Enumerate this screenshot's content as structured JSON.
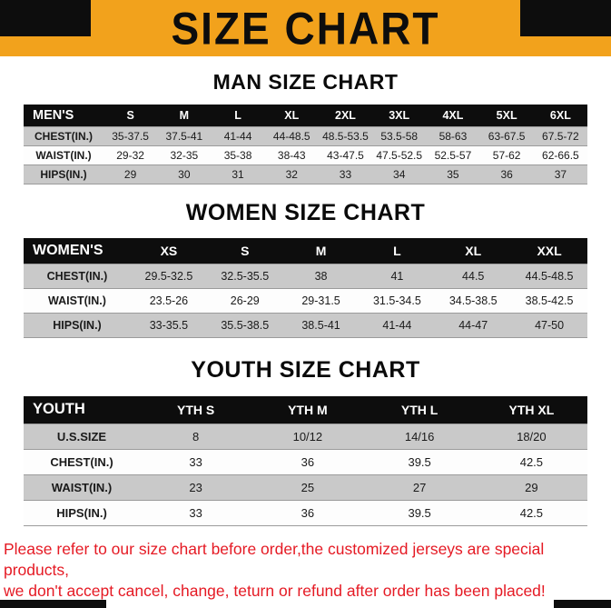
{
  "banner": {
    "title": "SIZE CHART"
  },
  "colors": {
    "accent_orange": "#f2a21c",
    "header_black": "#0d0d0d",
    "row_gray": "#c9c9c9",
    "footer_red": "#e51a24"
  },
  "sections": {
    "men": {
      "title": "MAN SIZE CHART",
      "table": {
        "header": [
          "MEN'S",
          "S",
          "M",
          "L",
          "XL",
          "2XL",
          "3XL",
          "4XL",
          "5XL",
          "6XL"
        ],
        "rows": [
          [
            "CHEST(IN.)",
            "35-37.5",
            "37.5-41",
            "41-44",
            "44-48.5",
            "48.5-53.5",
            "53.5-58",
            "58-63",
            "63-67.5",
            "67.5-72"
          ],
          [
            "WAIST(IN.)",
            "29-32",
            "32-35",
            "35-38",
            "38-43",
            "43-47.5",
            "47.5-52.5",
            "52.5-57",
            "57-62",
            "62-66.5"
          ],
          [
            "HIPS(IN.)",
            "29",
            "30",
            "31",
            "32",
            "33",
            "34",
            "35",
            "36",
            "37"
          ]
        ]
      }
    },
    "women": {
      "title": "WOMEN SIZE CHART",
      "table": {
        "header": [
          "WOMEN'S",
          "XS",
          "S",
          "M",
          "L",
          "XL",
          "XXL"
        ],
        "rows": [
          [
            "CHEST(IN.)",
            "29.5-32.5",
            "32.5-35.5",
            "38",
            "41",
            "44.5",
            "44.5-48.5"
          ],
          [
            "WAIST(IN.)",
            "23.5-26",
            "26-29",
            "29-31.5",
            "31.5-34.5",
            "34.5-38.5",
            "38.5-42.5"
          ],
          [
            "HIPS(IN.)",
            "33-35.5",
            "35.5-38.5",
            "38.5-41",
            "41-44",
            "44-47",
            "47-50"
          ]
        ]
      }
    },
    "youth": {
      "title": "YOUTH SIZE CHART",
      "table": {
        "header": [
          "YOUTH",
          "YTH S",
          "YTH M",
          "YTH L",
          "YTH XL"
        ],
        "rows": [
          [
            "U.S.SIZE",
            "8",
            "10/12",
            "14/16",
            "18/20"
          ],
          [
            "CHEST(IN.)",
            "33",
            "36",
            "39.5",
            "42.5"
          ],
          [
            "WAIST(IN.)",
            "23",
            "25",
            "27",
            "29"
          ],
          [
            "HIPS(IN.)",
            "33",
            "36",
            "39.5",
            "42.5"
          ]
        ]
      }
    }
  },
  "footer": {
    "line1": "Please refer to our size chart before order,the customized jerseys are special products,",
    "line2": "we don't accept cancel, change, teturn or refund after order has been placed!"
  }
}
